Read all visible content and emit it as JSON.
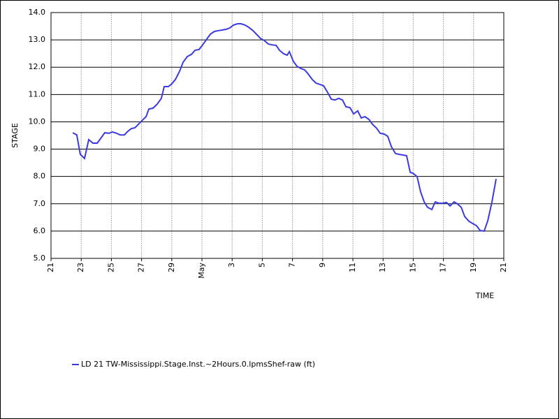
{
  "chart_data": {
    "type": "line",
    "xlabel": "TIME",
    "ylabel": "STAGE",
    "x": [
      22.44,
      22.71,
      22.94,
      23.22,
      23.5,
      23.78,
      24.06,
      24.33,
      24.56,
      24.84,
      25.07,
      25.35,
      25.58,
      25.86,
      26.09,
      26.32,
      26.56,
      26.83,
      27.11,
      27.3,
      27.48,
      27.76,
      28.04,
      28.31,
      28.5,
      28.78,
      29.0,
      29.24,
      29.52,
      29.75,
      30.03,
      30.31,
      30.54,
      30.81,
      31.05,
      31.32,
      31.56,
      31.83,
      32.11,
      32.34,
      32.62,
      32.85,
      33.08,
      33.36,
      33.59,
      33.87,
      34.1,
      34.38,
      34.61,
      34.89,
      35.12,
      35.4,
      35.63,
      35.91,
      36.14,
      36.42,
      36.65,
      36.79,
      37.06,
      37.3,
      37.57,
      37.81,
      38.04,
      38.31,
      38.55,
      38.82,
      39.06,
      39.29,
      39.57,
      39.8,
      40.07,
      40.31,
      40.54,
      40.81,
      41.05,
      41.32,
      41.56,
      41.79,
      42.06,
      42.3,
      42.58,
      42.81,
      43.08,
      43.31,
      43.55,
      43.82,
      44.06,
      44.56,
      44.8,
      44.98,
      45.26,
      45.49,
      45.72,
      45.95,
      46.23,
      46.46,
      46.69,
      46.97,
      47.2,
      47.44,
      47.71,
      47.94,
      48.18,
      48.41,
      48.69,
      48.92,
      49.19,
      49.43,
      49.7,
      49.94,
      50.21,
      50.49
    ],
    "series": [
      {
        "name": "LD 21 TW-Mississippi.Stage.Inst.~2Hours.0.lpmsShef-raw (ft)",
        "color": "#3a3ae0",
        "values": [
          9.6,
          9.52,
          8.81,
          8.66,
          9.35,
          9.22,
          9.22,
          9.42,
          9.6,
          9.58,
          9.63,
          9.58,
          9.52,
          9.52,
          9.65,
          9.75,
          9.78,
          9.93,
          10.09,
          10.19,
          10.47,
          10.5,
          10.65,
          10.86,
          11.29,
          11.29,
          11.39,
          11.55,
          11.85,
          12.18,
          12.39,
          12.47,
          12.62,
          12.65,
          12.82,
          13.03,
          13.21,
          13.31,
          13.34,
          13.36,
          13.39,
          13.44,
          13.54,
          13.59,
          13.59,
          13.54,
          13.46,
          13.34,
          13.21,
          13.05,
          12.98,
          12.85,
          12.82,
          12.8,
          12.62,
          12.49,
          12.44,
          12.57,
          12.21,
          12.03,
          11.95,
          11.9,
          11.75,
          11.55,
          11.42,
          11.37,
          11.32,
          11.11,
          10.83,
          10.8,
          10.86,
          10.8,
          10.55,
          10.52,
          10.29,
          10.4,
          10.14,
          10.19,
          10.09,
          9.91,
          9.76,
          9.58,
          9.55,
          9.47,
          9.09,
          8.84,
          8.81,
          8.76,
          8.15,
          8.12,
          7.99,
          7.43,
          7.07,
          6.87,
          6.79,
          7.07,
          7.02,
          7.02,
          7.05,
          6.92,
          7.07,
          6.99,
          6.87,
          6.53,
          6.36,
          6.28,
          6.2,
          6.02,
          6.0,
          6.38,
          7.05,
          7.91
        ]
      }
    ],
    "xlim": [
      21,
      51
    ],
    "xticks": [
      {
        "value": 21,
        "label": "21"
      },
      {
        "value": 23,
        "label": "23"
      },
      {
        "value": 25,
        "label": "25"
      },
      {
        "value": 27,
        "label": "27"
      },
      {
        "value": 29,
        "label": "29"
      },
      {
        "value": 31,
        "label": "May"
      },
      {
        "value": 33,
        "label": "3"
      },
      {
        "value": 35,
        "label": "5"
      },
      {
        "value": 37,
        "label": "7"
      },
      {
        "value": 39,
        "label": "9"
      },
      {
        "value": 41,
        "label": "11"
      },
      {
        "value": 43,
        "label": "13"
      },
      {
        "value": 45,
        "label": "15"
      },
      {
        "value": 47,
        "label": "17"
      },
      {
        "value": 49,
        "label": "19"
      },
      {
        "value": 51,
        "label": "21"
      }
    ],
    "ylim": [
      5,
      14
    ],
    "yticks": [
      {
        "value": 5,
        "label": "5.0"
      },
      {
        "value": 6,
        "label": "6.0"
      },
      {
        "value": 7,
        "label": "7.0"
      },
      {
        "value": 8,
        "label": "8.0"
      },
      {
        "value": 9,
        "label": "9.0"
      },
      {
        "value": 10,
        "label": "10.0"
      },
      {
        "value": 11,
        "label": "11.0"
      },
      {
        "value": 12,
        "label": "12.0"
      },
      {
        "value": 13,
        "label": "13.0"
      },
      {
        "value": 14,
        "label": "14.0"
      }
    ],
    "grid": true
  }
}
